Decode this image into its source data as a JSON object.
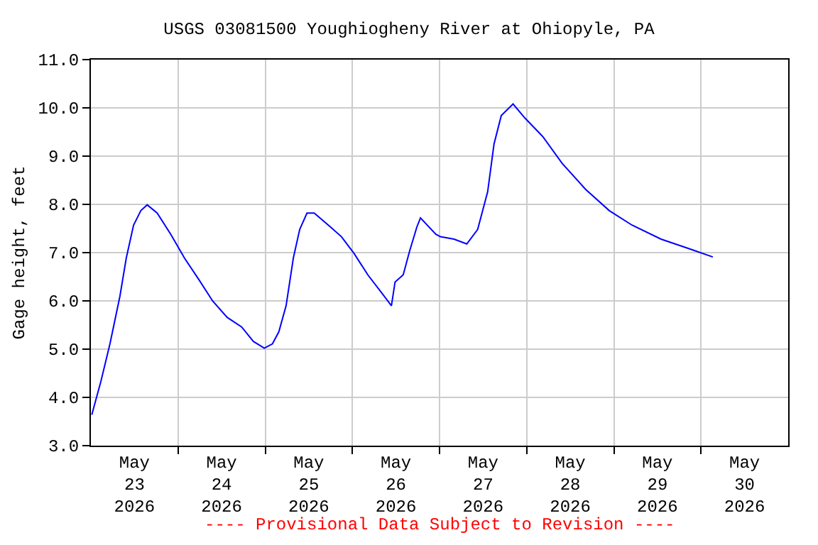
{
  "chart_data": {
    "type": "line",
    "title": "USGS 03081500 Youghiogheny River at Ohiopyle, PA",
    "ylabel": "Gage height, feet",
    "annotations": [
      "---- Provisional Data Subject to Revision ----"
    ],
    "x": [
      "2026-05-23T00:15",
      "2026-05-23T02:45",
      "2026-05-23T05:15",
      "2026-05-23T08:00",
      "2026-05-23T09:45",
      "2026-05-23T11:45",
      "2026-05-23T13:45",
      "2026-05-23T15:30",
      "2026-05-23T18:15",
      "2026-05-23T22:00",
      "2026-05-24T01:45",
      "2026-05-24T05:45",
      "2026-05-24T09:30",
      "2026-05-24T13:30",
      "2026-05-24T17:30",
      "2026-05-24T20:45",
      "2026-05-24T23:45",
      "2026-05-25T02:00",
      "2026-05-25T03:45",
      "2026-05-25T05:45",
      "2026-05-25T07:45",
      "2026-05-25T09:30",
      "2026-05-25T11:30",
      "2026-05-25T13:30",
      "2026-05-25T18:00",
      "2026-05-25T21:00",
      "2026-05-26T00:30",
      "2026-05-26T04:15",
      "2026-05-26T08:15",
      "2026-05-26T10:45",
      "2026-05-26T11:45",
      "2026-05-26T14:00",
      "2026-05-26T15:45",
      "2026-05-26T17:45",
      "2026-05-26T18:45",
      "2026-05-26T23:00",
      "2026-05-27T00:15",
      "2026-05-27T04:00",
      "2026-05-27T07:30",
      "2026-05-27T10:30",
      "2026-05-27T13:15",
      "2026-05-27T15:00",
      "2026-05-27T17:00",
      "2026-05-27T20:15",
      "2026-05-27T23:30",
      "2026-05-28T04:30",
      "2026-05-28T09:45",
      "2026-05-28T16:15",
      "2026-05-28T22:45",
      "2026-05-29T05:00",
      "2026-05-29T13:00",
      "2026-05-29T20:45",
      "2026-05-30T03:15"
    ],
    "series": [
      {
        "color": "#0000ff",
        "values": [
          3.64,
          4.33,
          5.11,
          6.1,
          6.89,
          7.57,
          7.87,
          7.99,
          7.82,
          7.38,
          6.89,
          6.44,
          6.0,
          5.66,
          5.46,
          5.16,
          5.02,
          5.11,
          5.36,
          5.9,
          6.89,
          7.48,
          7.82,
          7.82,
          7.53,
          7.33,
          6.98,
          6.54,
          6.15,
          5.9,
          6.39,
          6.54,
          7.03,
          7.53,
          7.72,
          7.38,
          7.33,
          7.28,
          7.18,
          7.48,
          8.26,
          9.25,
          9.84,
          10.08,
          9.79,
          9.4,
          8.85,
          8.31,
          7.87,
          7.57,
          7.28,
          7.08,
          6.91
        ]
      }
    ],
    "xlim": [
      "2026-05-23T00:00",
      "2026-05-31T00:00"
    ],
    "xticks": [
      {
        "value": "2026-05-23T12:00",
        "label": "May\n23\n2026"
      },
      {
        "value": "2026-05-24T12:00",
        "label": "May\n24\n2026"
      },
      {
        "value": "2026-05-25T12:00",
        "label": "May\n25\n2026"
      },
      {
        "value": "2026-05-26T12:00",
        "label": "May\n26\n2026"
      },
      {
        "value": "2026-05-27T12:00",
        "label": "May\n27\n2026"
      },
      {
        "value": "2026-05-28T12:00",
        "label": "May\n28\n2026"
      },
      {
        "value": "2026-05-29T12:00",
        "label": "May\n29\n2026"
      },
      {
        "value": "2026-05-30T12:00",
        "label": "May\n30\n2026"
      },
      {
        "value": "2026-05-24T00:00",
        "label": null
      },
      {
        "value": "2026-05-25T00:00",
        "label": null
      },
      {
        "value": "2026-05-26T00:00",
        "label": null
      },
      {
        "value": "2026-05-27T00:00",
        "label": null
      },
      {
        "value": "2026-05-28T00:00",
        "label": null
      },
      {
        "value": "2026-05-29T00:00",
        "label": null
      },
      {
        "value": "2026-05-30T00:00",
        "label": null
      }
    ],
    "ylim": [
      3.0,
      11.0
    ],
    "yticks": [
      {
        "value": 3,
        "label": "3.0"
      },
      {
        "value": 4,
        "label": "4.0"
      },
      {
        "value": 5,
        "label": "5.0"
      },
      {
        "value": 6,
        "label": "6.0"
      },
      {
        "value": 7,
        "label": "7.0"
      },
      {
        "value": 8,
        "label": "8.0"
      },
      {
        "value": 9,
        "label": "9.0"
      },
      {
        "value": 10,
        "label": "10.0"
      },
      {
        "value": 11,
        "label": "11.0"
      }
    ],
    "grid": true,
    "line_style": "solid",
    "marker": "none"
  }
}
